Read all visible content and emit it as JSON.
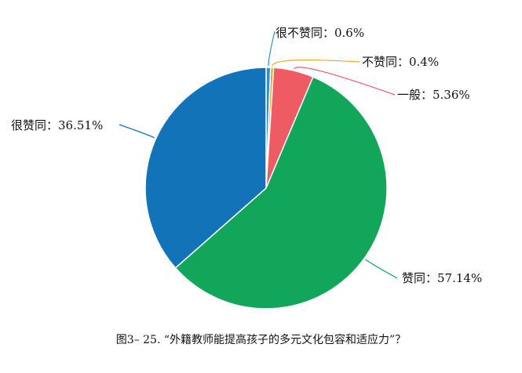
{
  "chart_data": {
    "type": "pie",
    "title": "",
    "slices": [
      {
        "label": "很不赞同：0.6%",
        "value": 0.6,
        "color": "#2f8fce"
      },
      {
        "label": "不赞同：0.4%",
        "value": 0.4,
        "color": "#f2a51f"
      },
      {
        "label": "一般：5.36%",
        "value": 5.36,
        "color": "#ef5b62"
      },
      {
        "label": "赞同：57.14%",
        "value": 57.14,
        "color": "#11a65a"
      },
      {
        "label": "很赞同：36.51%",
        "value": 36.51,
        "color": "#1373b9"
      }
    ]
  },
  "caption": "图3– 25. “外籍教师能提高孩子的多元文化包容和适应力”？"
}
